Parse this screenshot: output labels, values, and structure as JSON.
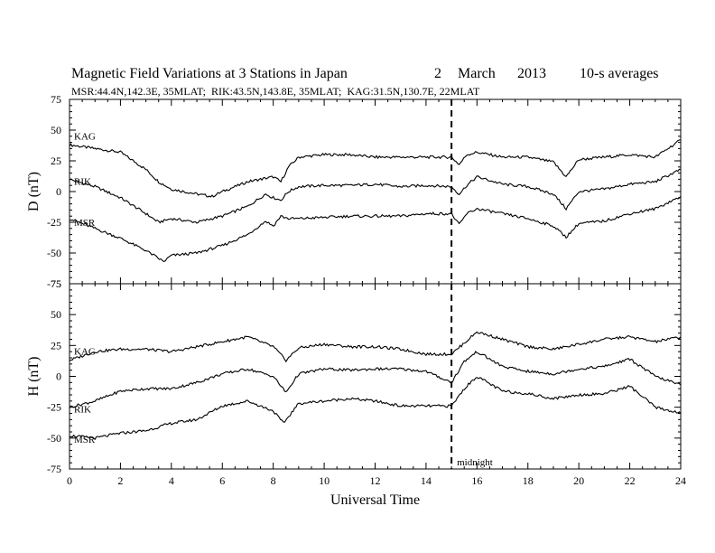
{
  "figure": {
    "title_left": "Magnetic Field Variations at 3 Stations in Japan",
    "title_date_day": "2",
    "title_date_month": "March",
    "title_date_year": "2013",
    "title_right": "10-s averages",
    "subtitle": "MSR:44.4N,142.3E, 35MLAT;  RIK:43.5N,143.8E, 35MLAT;  KAG:31.5N,130.7E, 22MLAT",
    "xlabel": "Universal Time",
    "midnight_label": "midnight",
    "midnight_x": 15
  },
  "chart_data": [
    {
      "type": "line",
      "panel": "D",
      "ylabel": "D (nT)",
      "xlim": [
        0,
        24
      ],
      "ylim": [
        -75,
        75
      ],
      "x_ticks": [
        0,
        2,
        4,
        6,
        8,
        10,
        12,
        14,
        16,
        18,
        20,
        22,
        24
      ],
      "y_ticks": [
        -75,
        -50,
        -25,
        0,
        25,
        50,
        75
      ],
      "series": [
        {
          "name": "KAG",
          "points": [
            [
              0,
              38
            ],
            [
              1,
              35
            ],
            [
              2,
              32
            ],
            [
              3,
              18
            ],
            [
              3.5,
              8
            ],
            [
              4,
              2
            ],
            [
              5,
              -2
            ],
            [
              5.6,
              -4
            ],
            [
              6,
              0
            ],
            [
              7,
              8
            ],
            [
              8,
              12
            ],
            [
              8.3,
              8
            ],
            [
              8.6,
              20
            ],
            [
              9,
              28
            ],
            [
              10,
              30
            ],
            [
              11,
              30
            ],
            [
              12,
              28
            ],
            [
              13,
              28
            ],
            [
              14,
              28
            ],
            [
              15,
              28
            ],
            [
              15.3,
              22
            ],
            [
              15.6,
              30
            ],
            [
              16,
              32
            ],
            [
              17,
              28
            ],
            [
              18,
              28
            ],
            [
              19,
              24
            ],
            [
              19.5,
              12
            ],
            [
              20,
              26
            ],
            [
              21,
              28
            ],
            [
              22,
              30
            ],
            [
              23,
              28
            ],
            [
              24,
              42
            ]
          ]
        },
        {
          "name": "RIK",
          "points": [
            [
              0,
              10
            ],
            [
              1,
              4
            ],
            [
              2,
              -5
            ],
            [
              3,
              -18
            ],
            [
              3.5,
              -25
            ],
            [
              4,
              -22
            ],
            [
              5,
              -25
            ],
            [
              6,
              -20
            ],
            [
              7,
              -12
            ],
            [
              7.7,
              -2
            ],
            [
              8,
              -5
            ],
            [
              8.3,
              -7
            ],
            [
              8.6,
              0
            ],
            [
              9,
              4
            ],
            [
              10,
              5
            ],
            [
              11,
              5
            ],
            [
              12,
              6
            ],
            [
              13,
              4
            ],
            [
              14,
              5
            ],
            [
              15,
              4
            ],
            [
              15.3,
              -2
            ],
            [
              15.6,
              5
            ],
            [
              16,
              12
            ],
            [
              17,
              6
            ],
            [
              18,
              4
            ],
            [
              19,
              -2
            ],
            [
              19.5,
              -14
            ],
            [
              20,
              0
            ],
            [
              21,
              2
            ],
            [
              22,
              6
            ],
            [
              23,
              8
            ],
            [
              24,
              18
            ]
          ]
        },
        {
          "name": "MSR",
          "points": [
            [
              0,
              -22
            ],
            [
              1,
              -30
            ],
            [
              2,
              -38
            ],
            [
              3,
              -48
            ],
            [
              3.7,
              -57
            ],
            [
              4,
              -52
            ],
            [
              5,
              -50
            ],
            [
              6,
              -44
            ],
            [
              7,
              -35
            ],
            [
              7.7,
              -24
            ],
            [
              8,
              -28
            ],
            [
              8.3,
              -20
            ],
            [
              8.6,
              -22
            ],
            [
              9,
              -22
            ],
            [
              10,
              -21
            ],
            [
              11,
              -20
            ],
            [
              12,
              -20
            ],
            [
              13,
              -20
            ],
            [
              14,
              -18
            ],
            [
              15,
              -18
            ],
            [
              15.3,
              -27
            ],
            [
              15.6,
              -18
            ],
            [
              16,
              -14
            ],
            [
              17,
              -18
            ],
            [
              18,
              -22
            ],
            [
              19,
              -28
            ],
            [
              19.5,
              -37
            ],
            [
              20,
              -26
            ],
            [
              21,
              -24
            ],
            [
              22,
              -18
            ],
            [
              23,
              -14
            ],
            [
              24,
              -4
            ]
          ]
        }
      ]
    },
    {
      "type": "line",
      "panel": "H",
      "ylabel": "H (nT)",
      "xlim": [
        0,
        24
      ],
      "ylim": [
        -75,
        75
      ],
      "x_ticks": [
        0,
        2,
        4,
        6,
        8,
        10,
        12,
        14,
        16,
        18,
        20,
        22,
        24
      ],
      "y_ticks": [
        -75,
        -50,
        -25,
        0,
        25,
        50,
        75
      ],
      "series": [
        {
          "name": "KAG",
          "points": [
            [
              0,
              13
            ],
            [
              1,
              20
            ],
            [
              2,
              22
            ],
            [
              3,
              22
            ],
            [
              4,
              20
            ],
            [
              5,
              24
            ],
            [
              6,
              28
            ],
            [
              7,
              32
            ],
            [
              8,
              24
            ],
            [
              8.5,
              13
            ],
            [
              9,
              23
            ],
            [
              10,
              26
            ],
            [
              11,
              24
            ],
            [
              12,
              24
            ],
            [
              13,
              22
            ],
            [
              14,
              18
            ],
            [
              15,
              18
            ],
            [
              15.5,
              27
            ],
            [
              16,
              36
            ],
            [
              17,
              30
            ],
            [
              18,
              24
            ],
            [
              19,
              22
            ],
            [
              20,
              26
            ],
            [
              21,
              30
            ],
            [
              22,
              32
            ],
            [
              23,
              28
            ],
            [
              24,
              32
            ]
          ]
        },
        {
          "name": "RIK",
          "points": [
            [
              0,
              -25
            ],
            [
              1,
              -20
            ],
            [
              2,
              -12
            ],
            [
              3,
              -10
            ],
            [
              4,
              -10
            ],
            [
              5,
              -5
            ],
            [
              6,
              2
            ],
            [
              7,
              6
            ],
            [
              8,
              0
            ],
            [
              8.5,
              -13
            ],
            [
              9,
              2
            ],
            [
              10,
              6
            ],
            [
              11,
              5
            ],
            [
              12,
              6
            ],
            [
              13,
              6
            ],
            [
              14,
              4
            ],
            [
              15,
              -5
            ],
            [
              15.5,
              12
            ],
            [
              16,
              20
            ],
            [
              17,
              8
            ],
            [
              18,
              4
            ],
            [
              19,
              2
            ],
            [
              20,
              6
            ],
            [
              21,
              8
            ],
            [
              22,
              14
            ],
            [
              23,
              0
            ],
            [
              24,
              -7
            ]
          ]
        },
        {
          "name": "MSR",
          "points": [
            [
              0,
              -48
            ],
            [
              1,
              -50
            ],
            [
              2,
              -46
            ],
            [
              3,
              -44
            ],
            [
              4,
              -38
            ],
            [
              5,
              -35
            ],
            [
              6,
              -24
            ],
            [
              7,
              -20
            ],
            [
              8,
              -28
            ],
            [
              8.4,
              -38
            ],
            [
              9,
              -22
            ],
            [
              10,
              -20
            ],
            [
              11,
              -18
            ],
            [
              12,
              -20
            ],
            [
              13,
              -24
            ],
            [
              14,
              -24
            ],
            [
              15,
              -24
            ],
            [
              15.5,
              -10
            ],
            [
              16,
              0
            ],
            [
              17,
              -12
            ],
            [
              18,
              -14
            ],
            [
              19,
              -18
            ],
            [
              20,
              -15
            ],
            [
              21,
              -14
            ],
            [
              22,
              -8
            ],
            [
              23,
              -25
            ],
            [
              24,
              -30
            ]
          ]
        }
      ]
    }
  ]
}
